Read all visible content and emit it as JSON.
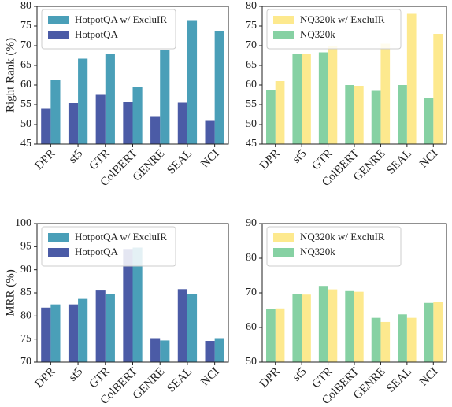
{
  "chart_data": [
    {
      "type": "bar",
      "ylabel": "Right Rank (%)",
      "categories": [
        "DPR",
        "st5",
        "GTR",
        "ColBERT",
        "GENRE",
        "SEAL",
        "NCI"
      ],
      "series": [
        {
          "name": "HotpotQA w/ ExcluIR",
          "color": "#4a9fb8",
          "values": [
            61.2,
            66.7,
            67.8,
            59.6,
            69.0,
            76.3,
            73.8
          ]
        },
        {
          "name": "HotpotQA",
          "color": "#4b5ba6",
          "values": [
            54.1,
            55.4,
            57.5,
            55.6,
            52.1,
            55.5,
            50.9
          ]
        }
      ],
      "ylim": [
        45,
        80
      ],
      "yticks": [
        45,
        50,
        55,
        60,
        65,
        70,
        75,
        80
      ],
      "legend": "upper left"
    },
    {
      "type": "bar",
      "categories": [
        "DPR",
        "st5",
        "GTR",
        "ColBERT",
        "GENRE",
        "SEAL",
        "NCI"
      ],
      "series": [
        {
          "name": "NQ320k w/ ExcluIR",
          "color": "#fde98e",
          "values": [
            61.0,
            67.9,
            70.0,
            59.8,
            70.5,
            78.1,
            73.0
          ]
        },
        {
          "name": "NQ320k",
          "color": "#86d1a3",
          "values": [
            58.8,
            67.8,
            68.3,
            60.0,
            58.7,
            60.0,
            56.8
          ]
        }
      ],
      "ylim": [
        45,
        80
      ],
      "yticks": [
        45,
        50,
        55,
        60,
        65,
        70,
        75,
        80
      ],
      "legend": "upper left"
    },
    {
      "type": "bar",
      "ylabel": "MRR (%)",
      "categories": [
        "DPR",
        "st5",
        "GTR",
        "ColBERT",
        "GENRE",
        "SEAL",
        "NCI"
      ],
      "series": [
        {
          "name": "HotpotQA w/ ExcluIR",
          "color": "#4a9fb8",
          "values": [
            82.5,
            83.7,
            84.8,
            94.8,
            74.7,
            84.8,
            75.2
          ]
        },
        {
          "name": "HotpotQA",
          "color": "#4b5ba6",
          "values": [
            81.8,
            82.5,
            85.5,
            94.5,
            75.2,
            85.8,
            74.6
          ]
        }
      ],
      "ylim": [
        70,
        100
      ],
      "yticks": [
        70,
        75,
        80,
        85,
        90,
        95,
        100
      ],
      "legend": "upper left"
    },
    {
      "type": "bar",
      "categories": [
        "DPR",
        "st5",
        "GTR",
        "ColBERT",
        "GENRE",
        "SEAL",
        "NCI"
      ],
      "series": [
        {
          "name": "NQ320k w/ ExcluIR",
          "color": "#fde98e",
          "values": [
            65.5,
            69.5,
            71.0,
            70.3,
            61.6,
            62.8,
            67.4
          ]
        },
        {
          "name": "NQ320k",
          "color": "#86d1a3",
          "values": [
            65.3,
            69.7,
            72.0,
            70.5,
            62.8,
            63.8,
            67.1
          ]
        }
      ],
      "ylim": [
        50,
        90
      ],
      "yticks": [
        50,
        60,
        70,
        80,
        90
      ],
      "legend": "upper left"
    }
  ]
}
